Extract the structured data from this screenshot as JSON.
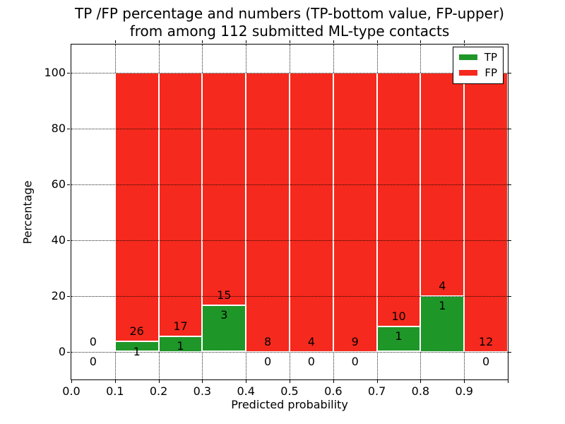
{
  "chart_data": {
    "type": "bar",
    "stacked": true,
    "unit": "percent",
    "title_line1": "TP /FP percentage and numbers (TP-bottom value, FP-upper)",
    "title_line2": "from among 112 submitted ML-type contacts",
    "xlabel": "Predicted probability",
    "ylabel": "Percentage",
    "total_contacts": 112,
    "xlim": [
      0.0,
      1.0
    ],
    "ylim": [
      -10,
      110
    ],
    "grid": "dotted",
    "legend_position": "upper-right",
    "legend": [
      {
        "label": "TP",
        "color": "#1e9628"
      },
      {
        "label": "FP",
        "color": "#f5291d"
      }
    ],
    "colors": {
      "tp": "#1e9628",
      "fp": "#f5291d",
      "bar_edge": "#ffffff",
      "text": "#000000"
    },
    "x_ticks": [
      {
        "v": 0.0,
        "label": "0.0"
      },
      {
        "v": 0.1,
        "label": "0.1"
      },
      {
        "v": 0.2,
        "label": "0.2"
      },
      {
        "v": 0.3,
        "label": "0.3"
      },
      {
        "v": 0.4,
        "label": "0.4"
      },
      {
        "v": 0.5,
        "label": "0.5"
      },
      {
        "v": 0.6,
        "label": "0.6"
      },
      {
        "v": 0.7,
        "label": "0.7"
      },
      {
        "v": 0.8,
        "label": "0.8"
      },
      {
        "v": 0.9,
        "label": "0.9"
      },
      {
        "v": 1.0,
        "label": ""
      }
    ],
    "y_ticks": [
      {
        "v": 0,
        "label": "0"
      },
      {
        "v": 20,
        "label": "20"
      },
      {
        "v": 40,
        "label": "40"
      },
      {
        "v": 60,
        "label": "60"
      },
      {
        "v": 80,
        "label": "80"
      },
      {
        "v": 100,
        "label": "100"
      }
    ],
    "bins": [
      {
        "x0": 0.0,
        "x1": 0.1,
        "tp": 0,
        "fp": 0,
        "tp_pct": 0,
        "fp_pct": 0
      },
      {
        "x0": 0.1,
        "x1": 0.2,
        "tp": 1,
        "fp": 26,
        "tp_pct": 3.7,
        "fp_pct": 96.3
      },
      {
        "x0": 0.2,
        "x1": 0.3,
        "tp": 1,
        "fp": 17,
        "tp_pct": 5.56,
        "fp_pct": 94.44
      },
      {
        "x0": 0.3,
        "x1": 0.4,
        "tp": 3,
        "fp": 15,
        "tp_pct": 16.67,
        "fp_pct": 83.33
      },
      {
        "x0": 0.4,
        "x1": 0.5,
        "tp": 0,
        "fp": 8,
        "tp_pct": 0,
        "fp_pct": 100
      },
      {
        "x0": 0.5,
        "x1": 0.6,
        "tp": 0,
        "fp": 4,
        "tp_pct": 0,
        "fp_pct": 100
      },
      {
        "x0": 0.6,
        "x1": 0.7,
        "tp": 0,
        "fp": 9,
        "tp_pct": 0,
        "fp_pct": 100
      },
      {
        "x0": 0.7,
        "x1": 0.8,
        "tp": 1,
        "fp": 10,
        "tp_pct": 9.09,
        "fp_pct": 90.91
      },
      {
        "x0": 0.8,
        "x1": 0.9,
        "tp": 1,
        "fp": 4,
        "tp_pct": 20.0,
        "fp_pct": 80.0
      },
      {
        "x0": 0.9,
        "x1": 1.0,
        "tp": 0,
        "fp": 12,
        "tp_pct": 0,
        "fp_pct": 100
      }
    ]
  }
}
